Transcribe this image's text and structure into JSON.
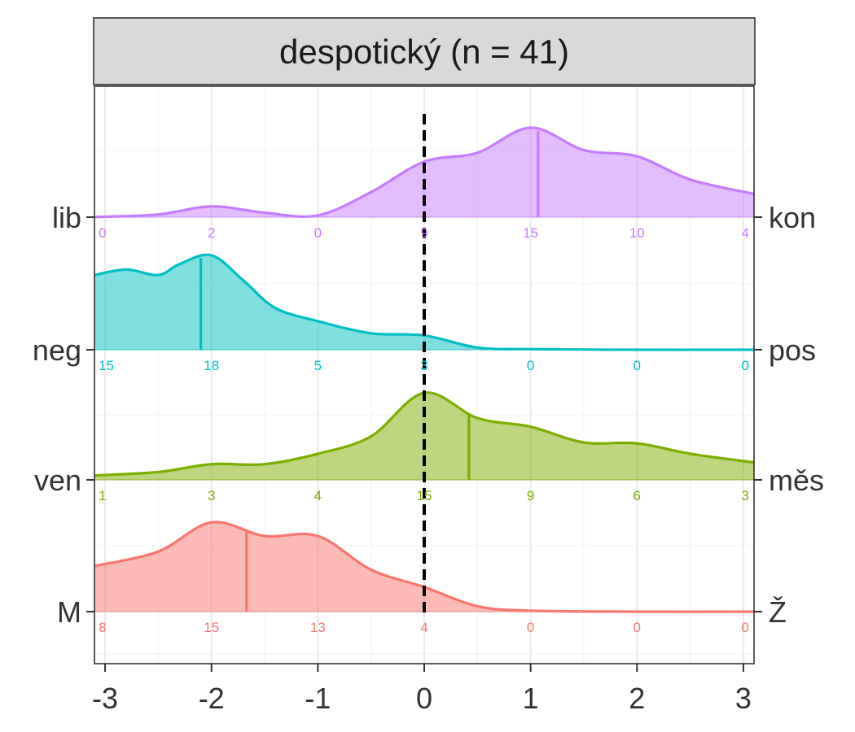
{
  "chart_data": {
    "type": "ridgeline",
    "title": "despotický (n = 41)",
    "xlim": [
      -3.1,
      3.1
    ],
    "x_ticks": [
      -3,
      -2,
      -1,
      0,
      1,
      2,
      3
    ],
    "x_tick_labels": [
      "-3",
      "-2",
      "-1",
      "0",
      "1",
      "2",
      "3"
    ],
    "count_positions": [
      -3,
      -2,
      -1,
      0,
      1,
      2,
      3
    ],
    "reference_line_x": 0,
    "grid": true,
    "series": [
      {
        "left_label": "lib",
        "right_label": "kon",
        "color": "#C77CFF",
        "mean": 1.07,
        "counts": [
          0,
          2,
          0,
          9,
          15,
          10,
          4
        ],
        "density": [
          [
            -3.1,
            0.002
          ],
          [
            -2.5,
            0.03
          ],
          [
            -2.0,
            0.12
          ],
          [
            -1.5,
            0.05
          ],
          [
            -1.0,
            0.02
          ],
          [
            -0.5,
            0.28
          ],
          [
            0.0,
            0.62
          ],
          [
            0.5,
            0.72
          ],
          [
            1.0,
            1.0
          ],
          [
            1.5,
            0.75
          ],
          [
            2.0,
            0.68
          ],
          [
            2.5,
            0.42
          ],
          [
            3.1,
            0.26
          ]
        ]
      },
      {
        "left_label": "neg",
        "right_label": "pos",
        "color": "#00BFC4",
        "mean": -2.1,
        "counts": [
          15,
          18,
          5,
          3,
          0,
          0,
          0
        ],
        "density": [
          [
            -3.1,
            0.68
          ],
          [
            -2.8,
            0.73
          ],
          [
            -2.5,
            0.68
          ],
          [
            -2.3,
            0.78
          ],
          [
            -2.0,
            0.86
          ],
          [
            -1.7,
            0.63
          ],
          [
            -1.4,
            0.38
          ],
          [
            -1.0,
            0.26
          ],
          [
            -0.5,
            0.15
          ],
          [
            0.0,
            0.13
          ],
          [
            0.5,
            0.02
          ],
          [
            1.0,
            0.005
          ],
          [
            2.0,
            0.0
          ],
          [
            3.1,
            0.0
          ]
        ]
      },
      {
        "left_label": "ven",
        "right_label": "měs",
        "color": "#7CAE00",
        "mean": 0.42,
        "counts": [
          1,
          3,
          4,
          15,
          9,
          6,
          3
        ],
        "density": [
          [
            -3.1,
            0.05
          ],
          [
            -2.5,
            0.09
          ],
          [
            -2.0,
            0.18
          ],
          [
            -1.5,
            0.18
          ],
          [
            -1.0,
            0.3
          ],
          [
            -0.5,
            0.5
          ],
          [
            0.0,
            1.0
          ],
          [
            0.5,
            0.71
          ],
          [
            1.0,
            0.61
          ],
          [
            1.5,
            0.43
          ],
          [
            2.0,
            0.42
          ],
          [
            2.5,
            0.3
          ],
          [
            3.1,
            0.2
          ]
        ]
      },
      {
        "left_label": "M",
        "right_label": "Ž",
        "color": "#F8766D",
        "mean": -1.67,
        "counts": [
          8,
          15,
          13,
          4,
          0,
          0,
          0
        ],
        "density": [
          [
            -3.1,
            0.5
          ],
          [
            -2.5,
            0.66
          ],
          [
            -2.0,
            0.98
          ],
          [
            -1.5,
            0.83
          ],
          [
            -1.0,
            0.83
          ],
          [
            -0.5,
            0.46
          ],
          [
            0.0,
            0.27
          ],
          [
            0.5,
            0.06
          ],
          [
            1.0,
            0.01
          ],
          [
            2.0,
            0.0
          ],
          [
            3.1,
            0.0
          ]
        ]
      }
    ]
  }
}
